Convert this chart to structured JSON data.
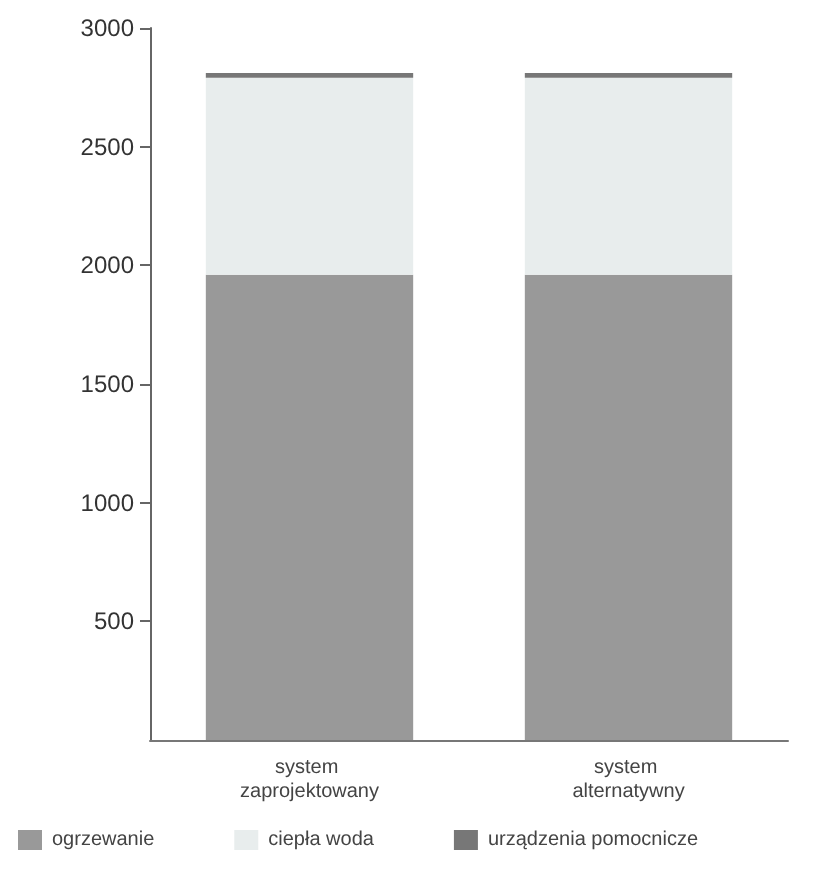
{
  "chart_data": {
    "type": "bar",
    "stacked": true,
    "categories": [
      "system zaprojektowany",
      "system alternatywny"
    ],
    "series": [
      {
        "name": "ogrzewanie",
        "color": "#999999",
        "values": [
          1960,
          1960
        ]
      },
      {
        "name": "ciepła woda",
        "color": "#e8eded",
        "values": [
          830,
          830
        ]
      },
      {
        "name": "urządzenia pomocnicze",
        "color": "#777777",
        "values": [
          20,
          20
        ]
      }
    ],
    "ylim": [
      0,
      3000
    ],
    "yticks": [
      500,
      1000,
      1500,
      2000,
      2500,
      3000
    ],
    "grid": false,
    "legend": "bottom"
  }
}
